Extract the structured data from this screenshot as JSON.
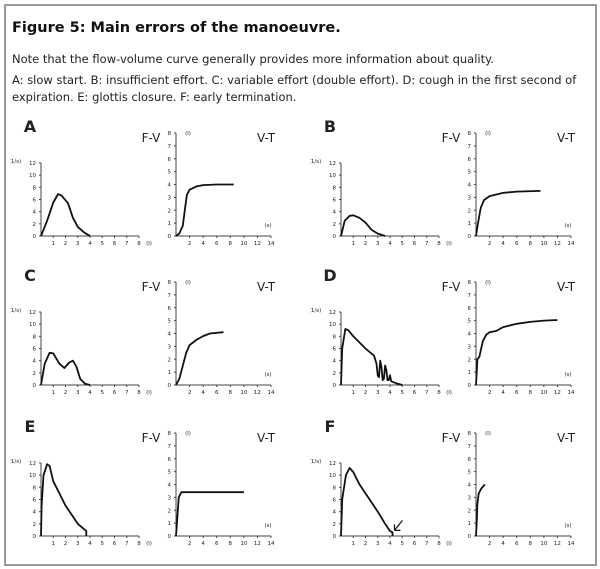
{
  "figure": {
    "title": "Figure 5: Main errors of the manoeuvre.",
    "note": "Note that the flow-volume curve generally provides more information about quality.",
    "caption": "A: slow start. B: insufficient effort. C: variable effort (double effort). D: cough in the first second of expiration. E: glottis closure. F: early termination."
  },
  "chart_data": [
    {
      "panel": "A",
      "title": "F-V",
      "type": "line",
      "ylabel": "(1/s)",
      "xlabel": "(l)",
      "xlim": [
        0,
        8
      ],
      "ylim": [
        0,
        12
      ],
      "xticks": [
        1,
        2,
        3,
        4,
        5,
        6,
        7,
        8
      ],
      "yticks": [
        0,
        2,
        4,
        6,
        8,
        10,
        12
      ],
      "x": [
        0,
        0.5,
        1,
        1.4,
        1.7,
        2.2,
        2.6,
        3,
        3.5,
        4
      ],
      "y": [
        0,
        2.5,
        5.5,
        6.9,
        6.6,
        5.4,
        3,
        1.5,
        0.6,
        0
      ]
    },
    {
      "panel": "A",
      "title": "V-T",
      "type": "line",
      "ylabel": "(l)",
      "xlabel": "(s)",
      "xlim": [
        0,
        14
      ],
      "ylim": [
        0,
        8
      ],
      "xticks": [
        2,
        4,
        6,
        8,
        10,
        12,
        14
      ],
      "yticks": [
        0,
        1,
        2,
        3,
        4,
        5,
        6,
        7,
        8
      ],
      "x": [
        0,
        0.5,
        1,
        1.3,
        1.6,
        2,
        3,
        4,
        6,
        8.5
      ],
      "y": [
        0,
        0.2,
        0.8,
        2,
        3.2,
        3.6,
        3.85,
        3.95,
        4,
        4
      ]
    },
    {
      "panel": "B",
      "title": "F-V",
      "type": "line",
      "ylabel": "(1/s)",
      "xlabel": "(l)",
      "xlim": [
        0,
        8
      ],
      "ylim": [
        0,
        12
      ],
      "xticks": [
        1,
        2,
        3,
        4,
        5,
        6,
        7,
        8
      ],
      "yticks": [
        0,
        2,
        4,
        6,
        8,
        10,
        12
      ],
      "x": [
        0,
        0.3,
        0.7,
        1,
        1.5,
        2,
        2.5,
        3,
        3.6
      ],
      "y": [
        0,
        2.5,
        3.3,
        3.4,
        3,
        2.2,
        1,
        0.4,
        0
      ]
    },
    {
      "panel": "B",
      "title": "V-T",
      "type": "line",
      "ylabel": "(l)",
      "xlabel": "(s)",
      "xlim": [
        0,
        14
      ],
      "ylim": [
        0,
        8
      ],
      "xticks": [
        2,
        4,
        6,
        8,
        10,
        12,
        14
      ],
      "yticks": [
        0,
        1,
        2,
        3,
        4,
        5,
        6,
        7,
        8
      ],
      "x": [
        0,
        0.3,
        0.7,
        1.2,
        2,
        4,
        6,
        9.5
      ],
      "y": [
        0,
        1,
        2.2,
        2.8,
        3.1,
        3.35,
        3.45,
        3.5
      ]
    },
    {
      "panel": "C",
      "title": "F-V",
      "type": "line",
      "ylabel": "(1/s)",
      "xlabel": "(l)",
      "xlim": [
        0,
        8
      ],
      "ylim": [
        0,
        12
      ],
      "xticks": [
        1,
        2,
        3,
        4,
        5,
        6,
        7,
        8
      ],
      "yticks": [
        0,
        2,
        4,
        6,
        8,
        10,
        12
      ],
      "x": [
        0,
        0.3,
        0.7,
        1,
        1.5,
        1.9,
        2.3,
        2.6,
        2.9,
        3.2,
        3.6,
        4
      ],
      "y": [
        0,
        3.5,
        5.3,
        5.2,
        3.5,
        2.8,
        3.7,
        4,
        3,
        1,
        0.2,
        0
      ]
    },
    {
      "panel": "C",
      "title": "V-T",
      "type": "line",
      "ylabel": "(l)",
      "xlabel": "(s)",
      "xlim": [
        0,
        14
      ],
      "ylim": [
        0,
        8
      ],
      "xticks": [
        2,
        4,
        6,
        8,
        10,
        12,
        14
      ],
      "yticks": [
        0,
        1,
        2,
        3,
        4,
        5,
        6,
        7,
        8
      ],
      "x": [
        0,
        0.5,
        1,
        1.5,
        2,
        3,
        4,
        5,
        7
      ],
      "y": [
        0,
        0.5,
        1.5,
        2.5,
        3.1,
        3.5,
        3.8,
        4,
        4.1
      ]
    },
    {
      "panel": "D",
      "title": "F-V",
      "type": "line",
      "ylabel": "(1/s)",
      "xlabel": "(l)",
      "xlim": [
        0,
        8
      ],
      "ylim": [
        0,
        12
      ],
      "xticks": [
        1,
        2,
        3,
        4,
        5,
        6,
        7,
        8
      ],
      "yticks": [
        0,
        2,
        4,
        6,
        8,
        10,
        12
      ],
      "x": [
        0,
        0.1,
        0.35,
        0.6,
        1,
        2,
        2.7,
        2.9,
        3,
        3.1,
        3.2,
        3.3,
        3.4,
        3.5,
        3.6,
        3.7,
        3.8,
        3.9,
        4,
        4.1,
        4.5,
        5
      ],
      "y": [
        0,
        6,
        9.2,
        9,
        8,
        6,
        4.8,
        3.5,
        1.5,
        1.3,
        4,
        3,
        0.8,
        1,
        3.2,
        2.5,
        0.8,
        0.8,
        1.6,
        0.6,
        0.3,
        0
      ]
    },
    {
      "panel": "D",
      "title": "V-T",
      "type": "line",
      "ylabel": "(l)",
      "xlabel": "(s)",
      "xlim": [
        0,
        14
      ],
      "ylim": [
        0,
        8
      ],
      "xticks": [
        2,
        4,
        6,
        8,
        10,
        12,
        14
      ],
      "yticks": [
        0,
        1,
        2,
        3,
        4,
        5,
        6,
        7,
        8
      ],
      "x": [
        0,
        0.2,
        0.5,
        1,
        1.5,
        2,
        3,
        4,
        6,
        8,
        10,
        12
      ],
      "y": [
        0,
        2,
        2.2,
        3.4,
        3.9,
        4.1,
        4.2,
        4.5,
        4.75,
        4.9,
        5,
        5.05
      ]
    },
    {
      "panel": "E",
      "title": "F-V",
      "type": "line",
      "ylabel": "(1/s)",
      "xlabel": "(l)",
      "xlim": [
        0,
        8
      ],
      "ylim": [
        0,
        12
      ],
      "xticks": [
        1,
        2,
        3,
        4,
        5,
        6,
        7,
        8
      ],
      "yticks": [
        0,
        2,
        4,
        6,
        8,
        10,
        12
      ],
      "x": [
        0,
        0.05,
        0.2,
        0.5,
        0.7,
        1,
        1.5,
        2,
        3,
        3.7,
        3.7
      ],
      "y": [
        0,
        5,
        10,
        11.8,
        11.5,
        9,
        7,
        5,
        2,
        0.8,
        0
      ]
    },
    {
      "panel": "E",
      "title": "V-T",
      "type": "line",
      "ylabel": "(l)",
      "xlabel": "(s)",
      "xlim": [
        0,
        14
      ],
      "ylim": [
        0,
        8
      ],
      "xticks": [
        2,
        4,
        6,
        8,
        10,
        12,
        14
      ],
      "yticks": [
        0,
        1,
        2,
        3,
        4,
        5,
        6,
        7,
        8
      ],
      "x": [
        0,
        0.2,
        0.4,
        0.8,
        10
      ],
      "y": [
        0,
        1.5,
        3,
        3.4,
        3.4
      ]
    },
    {
      "panel": "F",
      "title": "F-V",
      "type": "line",
      "ylabel": "(1/s)",
      "xlabel": "(l)",
      "xlim": [
        0,
        8
      ],
      "ylim": [
        0,
        12
      ],
      "xticks": [
        1,
        2,
        3,
        4,
        5,
        6,
        7,
        8
      ],
      "yticks": [
        0,
        2,
        4,
        6,
        8,
        10,
        12
      ],
      "x": [
        0,
        0.1,
        0.4,
        0.7,
        1,
        1.5,
        2,
        3,
        3.6,
        4,
        4.2,
        4.2
      ],
      "y": [
        0,
        6,
        10,
        11.2,
        10.5,
        8.5,
        7,
        4,
        2,
        0.8,
        0.6,
        0
      ],
      "annotation": "arrow-at-end"
    },
    {
      "panel": "F",
      "title": "V-T",
      "type": "line",
      "ylabel": "(l)",
      "xlabel": "(s)",
      "xlim": [
        0,
        14
      ],
      "ylim": [
        0,
        8
      ],
      "xticks": [
        2,
        4,
        6,
        8,
        10,
        12,
        14
      ],
      "yticks": [
        0,
        1,
        2,
        3,
        4,
        5,
        6,
        7,
        8
      ],
      "x": [
        0,
        0.1,
        0.2,
        0.4,
        0.8,
        1.3
      ],
      "y": [
        0,
        1,
        2.5,
        3.3,
        3.7,
        4
      ]
    }
  ]
}
